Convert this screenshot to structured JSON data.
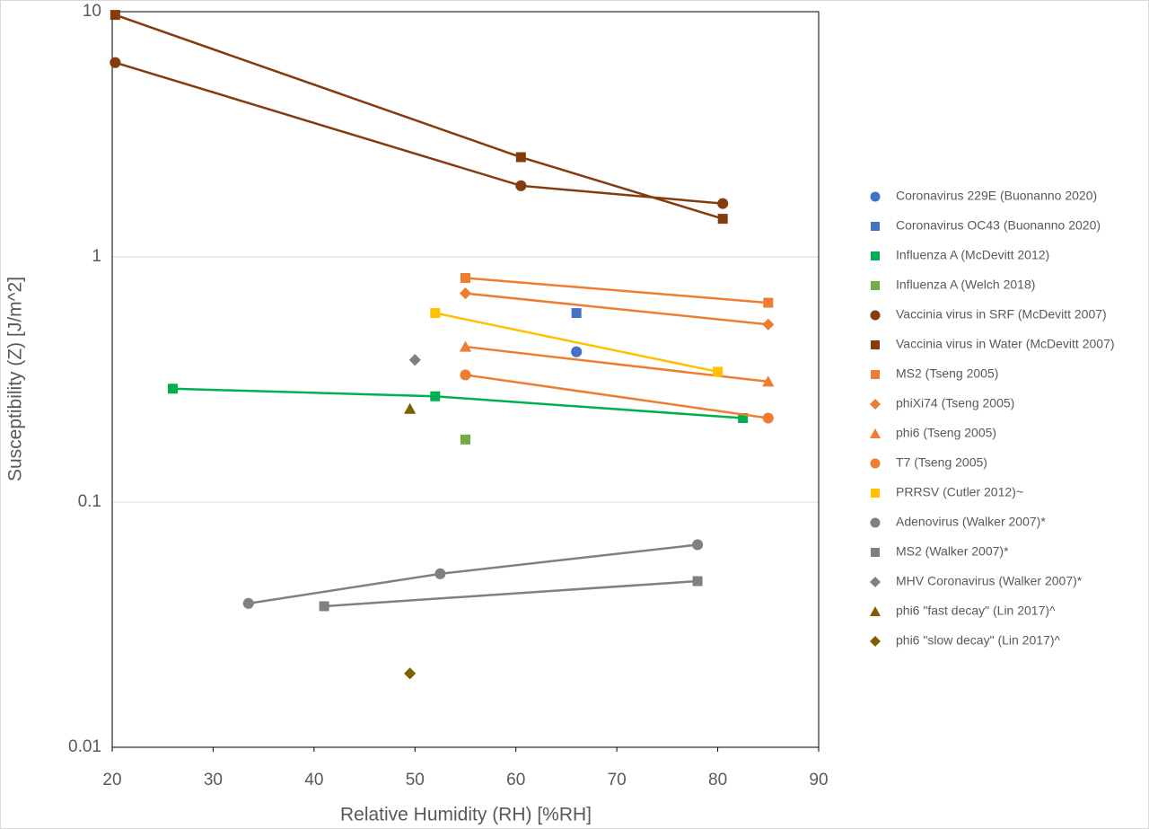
{
  "chart_data": {
    "type": "line",
    "x_label": "Relative Humidity (RH) [%RH]",
    "y_label": "Susceptibility (Z) [J/m^2]",
    "y_scale": "log",
    "grid": true,
    "xlim": [
      20,
      90
    ],
    "xticks": [
      20,
      30,
      40,
      50,
      60,
      70,
      80,
      90
    ],
    "ylim": [
      0.01,
      10
    ],
    "yticks": [
      0.01,
      0.1,
      1,
      10
    ],
    "legend": "right",
    "series": [
      {
        "name": "Coronavirus 229E (Buonanno 2020)",
        "color": "#4472c4",
        "marker": "circle",
        "line": false,
        "x": [
          66
        ],
        "values": [
          0.41
        ]
      },
      {
        "name": "Coronavirus OC43  (Buonanno 2020)",
        "color": "#4472c4",
        "marker": "square",
        "line": false,
        "x": [
          66
        ],
        "values": [
          0.59
        ]
      },
      {
        "name": "Influenza A (McDevitt 2012)",
        "color": "#00b050",
        "marker": "square",
        "line": true,
        "x": [
          26,
          52,
          82.5
        ],
        "values": [
          0.29,
          0.27,
          0.22
        ]
      },
      {
        "name": "Influenza A (Welch 2018)",
        "color": "#70ad47",
        "marker": "square",
        "line": false,
        "x": [
          55
        ],
        "values": [
          0.18
        ]
      },
      {
        "name": "Vaccinia virus in SRF (McDevitt 2007)",
        "color": "#843c0c",
        "marker": "circle",
        "line": true,
        "x": [
          20.3,
          60.5,
          80.5
        ],
        "values": [
          6.2,
          1.95,
          1.65
        ]
      },
      {
        "name": "Vaccinia virus in Water (McDevitt 2007)",
        "color": "#843c0c",
        "marker": "square",
        "line": true,
        "x": [
          20.3,
          60.5,
          80.5
        ],
        "values": [
          9.7,
          2.55,
          1.43
        ]
      },
      {
        "name": "MS2 (Tseng 2005)",
        "color": "#ed7d31",
        "marker": "square",
        "line": true,
        "x": [
          55,
          85
        ],
        "values": [
          0.82,
          0.65
        ]
      },
      {
        "name": "phiXi74 (Tseng 2005)",
        "color": "#ed7d31",
        "marker": "diamond",
        "line": true,
        "x": [
          55,
          85
        ],
        "values": [
          0.71,
          0.53
        ]
      },
      {
        "name": "phi6 (Tseng 2005)",
        "color": "#ed7d31",
        "marker": "triangle",
        "line": true,
        "x": [
          55,
          85
        ],
        "values": [
          0.43,
          0.31
        ]
      },
      {
        "name": "T7 (Tseng 2005)",
        "color": "#ed7d31",
        "marker": "circle",
        "line": true,
        "x": [
          55,
          85
        ],
        "values": [
          0.33,
          0.22
        ]
      },
      {
        "name": "PRRSV (Cutler 2012)~",
        "color": "#ffc000",
        "marker": "square",
        "line": true,
        "x": [
          52,
          80
        ],
        "values": [
          0.59,
          0.34
        ]
      },
      {
        "name": "Adenovirus (Walker 2007)*",
        "color": "#808080",
        "marker": "circle",
        "line": true,
        "x": [
          33.5,
          52.5,
          78
        ],
        "values": [
          0.0386,
          0.051,
          0.067
        ]
      },
      {
        "name": "MS2 (Walker 2007)*",
        "color": "#808080",
        "marker": "square",
        "line": true,
        "x": [
          41,
          78
        ],
        "values": [
          0.0376,
          0.0476
        ]
      },
      {
        "name": "MHV Coronavirus (Walker 2007)*",
        "color": "#808080",
        "marker": "diamond",
        "line": false,
        "x": [
          50
        ],
        "values": [
          0.38
        ]
      },
      {
        "name": "phi6 \"fast decay\" (Lin 2017)^",
        "color": "#7f6000",
        "marker": "triangle",
        "line": false,
        "x": [
          49.5
        ],
        "values": [
          0.24
        ]
      },
      {
        "name": "phi6 \"slow decay\" (Lin 2017)^",
        "color": "#7f6000",
        "marker": "diamond",
        "line": false,
        "x": [
          49.5
        ],
        "values": [
          0.02
        ]
      }
    ]
  }
}
